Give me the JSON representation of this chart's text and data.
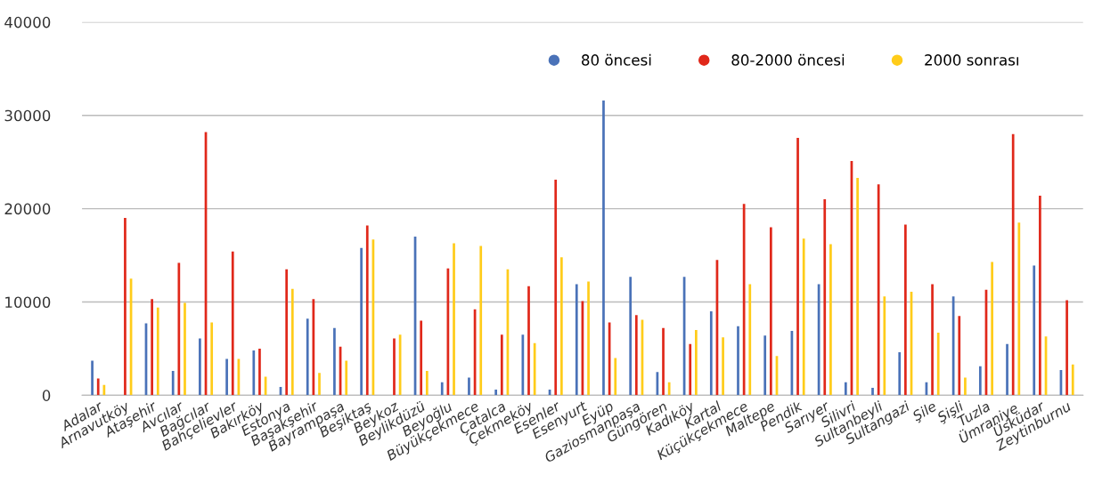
{
  "chart_data": {
    "type": "bar",
    "categories": [
      "Adalar",
      "Arnavutköy",
      "Ataşehir",
      "Avcılar",
      "Bağcılar",
      "Bahçelievler",
      "Bakırköy",
      "Estonya",
      "Başakşehir",
      "Bayrampaşa",
      "Beşiktaş",
      "Beykoz",
      "Beylikdüzü",
      "Beyoğlu",
      "Büyükçekmece",
      "Çatalca",
      "Çekmeköy",
      "Esenler",
      "Esenyurt",
      "Eyüp",
      "Gaziosmanpaşa",
      "Güngören",
      "Kadıköy",
      "Kartal",
      "Küçükçekmece",
      "Maltepe",
      "Pendik",
      "Sarıyer",
      "Silivri",
      "Sultanbeyli",
      "Sultangazi",
      "Şile",
      "Şişli",
      "Tuzla",
      "Ümraniye",
      "Üsküdar",
      "Zeytinburnu"
    ],
    "series": [
      {
        "name": "80 öncesi",
        "color": "#4a72b8",
        "values": [
          3700,
          null,
          7700,
          2600,
          6100,
          3900,
          4800,
          900,
          8200,
          7200,
          15800,
          null,
          17000,
          1400,
          1900,
          600,
          6500,
          600,
          11900,
          31600,
          12700,
          2500,
          12700,
          9000,
          7400,
          6400,
          6900,
          11900,
          1400,
          800,
          4600,
          1400,
          10600,
          3100,
          5500,
          13900,
          2700
        ]
      },
      {
        "name": "80-2000 öncesi",
        "color": "#e0281a",
        "values": [
          1800,
          19000,
          10300,
          14200,
          28200,
          15400,
          5000,
          13500,
          10300,
          5200,
          18200,
          6100,
          8000,
          13600,
          9200,
          6500,
          11700,
          23100,
          10100,
          7800,
          8600,
          7200,
          5500,
          14500,
          20500,
          18000,
          27600,
          21000,
          25100,
          22600,
          18300,
          11900,
          8500,
          11300,
          28000,
          21400,
          10200
        ]
      },
      {
        "name": "2000 sonrası",
        "color": "#ffcc1a",
        "values": [
          1100,
          12500,
          9400,
          9900,
          7800,
          3900,
          2000,
          11400,
          2400,
          3700,
          16700,
          6500,
          2600,
          16300,
          16000,
          13500,
          5600,
          14800,
          12200,
          4000,
          8100,
          1400,
          7000,
          6200,
          11900,
          4200,
          16800,
          16200,
          23300,
          10600,
          11100,
          6700,
          1900,
          14300,
          18500,
          6300,
          3300
        ]
      }
    ],
    "ylim": [
      0,
      40000
    ],
    "yticks": [
      0,
      10000,
      20000,
      30000,
      40000
    ],
    "grid": "y",
    "legend": "top right"
  }
}
